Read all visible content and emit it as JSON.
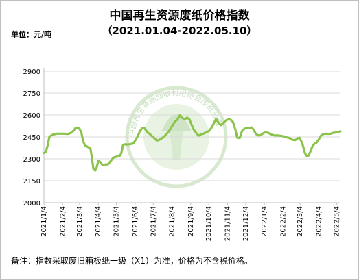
{
  "title": "中国再生资源废纸价格指数",
  "subtitle": "（2021.01.04-2022.05.10）",
  "unit": "单位：元/吨",
  "note": "备注：指数采取废旧箱板纸一级（X1）为准，价格为不含税价格。",
  "watermark": {
    "text": "中国再生资源回收利用协会废纸分会",
    "color": "#d7e9cf"
  },
  "colors": {
    "line": "#8cc34a",
    "axis": "#bfbfbf",
    "grid": "#d9d9d9"
  },
  "chart_data": {
    "type": "line",
    "title": "中国再生资源废纸价格指数",
    "subtitle": "（2021.01.04-2022.05.10）",
    "xlabel": "",
    "ylabel": "单位：元/吨",
    "ylim": [
      2000,
      2900
    ],
    "yticks": [
      2000,
      2150,
      2300,
      2450,
      2600,
      2750,
      2900
    ],
    "xlim": [
      "2021-01-04",
      "2022-05-10"
    ],
    "xticks": [
      "2021/1/4",
      "2021/2/4",
      "2021/3/4",
      "2021/4/4",
      "2021/5/4",
      "2021/6/4",
      "2021/7/4",
      "2021/8/4",
      "2021/9/4",
      "2021/10/4",
      "2021/11/4",
      "2021/12/4",
      "2022/1/4",
      "2022/2/4",
      "2022/3/4",
      "2022/4/4",
      "2022/5/4"
    ],
    "grid": "horizontal",
    "series": [
      {
        "color": "#8cc34a",
        "points": [
          [
            "2021-01-04",
            2340
          ],
          [
            "2021-01-07",
            2345
          ],
          [
            "2021-01-10",
            2390
          ],
          [
            "2021-01-13",
            2450
          ],
          [
            "2021-01-17",
            2462
          ],
          [
            "2021-01-21",
            2468
          ],
          [
            "2021-01-25",
            2472
          ],
          [
            "2021-02-04",
            2472
          ],
          [
            "2021-02-13",
            2470
          ],
          [
            "2021-02-18",
            2478
          ],
          [
            "2021-02-22",
            2492
          ],
          [
            "2021-02-25",
            2510
          ],
          [
            "2021-03-01",
            2514
          ],
          [
            "2021-03-04",
            2505
          ],
          [
            "2021-03-07",
            2480
          ],
          [
            "2021-03-10",
            2420
          ],
          [
            "2021-03-13",
            2392
          ],
          [
            "2021-03-16",
            2385
          ],
          [
            "2021-03-19",
            2378
          ],
          [
            "2021-03-22",
            2372
          ],
          [
            "2021-03-24",
            2320
          ],
          [
            "2021-03-27",
            2230
          ],
          [
            "2021-03-30",
            2220
          ],
          [
            "2021-04-01",
            2236
          ],
          [
            "2021-04-04",
            2285
          ],
          [
            "2021-04-07",
            2280
          ],
          [
            "2021-04-10",
            2262
          ],
          [
            "2021-04-13",
            2258
          ],
          [
            "2021-04-16",
            2262
          ],
          [
            "2021-04-20",
            2262
          ],
          [
            "2021-04-24",
            2282
          ],
          [
            "2021-04-29",
            2308
          ],
          [
            "2021-05-04",
            2315
          ],
          [
            "2021-05-09",
            2318
          ],
          [
            "2021-05-12",
            2338
          ],
          [
            "2021-05-15",
            2395
          ],
          [
            "2021-05-18",
            2400
          ],
          [
            "2021-05-21",
            2398
          ],
          [
            "2021-05-26",
            2400
          ],
          [
            "2021-06-01",
            2405
          ],
          [
            "2021-06-04",
            2425
          ],
          [
            "2021-06-08",
            2452
          ],
          [
            "2021-06-12",
            2490
          ],
          [
            "2021-06-16",
            2512
          ],
          [
            "2021-06-20",
            2508
          ],
          [
            "2021-06-24",
            2482
          ],
          [
            "2021-06-28",
            2470
          ],
          [
            "2021-07-02",
            2455
          ],
          [
            "2021-07-06",
            2440
          ],
          [
            "2021-07-10",
            2425
          ],
          [
            "2021-07-14",
            2430
          ],
          [
            "2021-07-18",
            2440
          ],
          [
            "2021-07-22",
            2452
          ],
          [
            "2021-07-26",
            2470
          ],
          [
            "2021-07-30",
            2488
          ],
          [
            "2021-08-04",
            2522
          ],
          [
            "2021-08-09",
            2555
          ],
          [
            "2021-08-13",
            2568
          ],
          [
            "2021-08-17",
            2598
          ],
          [
            "2021-08-21",
            2580
          ],
          [
            "2021-08-25",
            2570
          ],
          [
            "2021-08-29",
            2582
          ],
          [
            "2021-09-02",
            2570
          ],
          [
            "2021-09-05",
            2538
          ],
          [
            "2021-09-09",
            2500
          ],
          [
            "2021-09-13",
            2478
          ],
          [
            "2021-09-17",
            2458
          ],
          [
            "2021-09-21",
            2468
          ],
          [
            "2021-09-25",
            2472
          ],
          [
            "2021-09-29",
            2480
          ],
          [
            "2021-10-04",
            2490
          ],
          [
            "2021-10-08",
            2510
          ],
          [
            "2021-10-12",
            2540
          ],
          [
            "2021-10-16",
            2575
          ],
          [
            "2021-10-20",
            2545
          ],
          [
            "2021-10-24",
            2530
          ],
          [
            "2021-10-28",
            2545
          ],
          [
            "2021-11-01",
            2562
          ],
          [
            "2021-11-05",
            2570
          ],
          [
            "2021-11-09",
            2568
          ],
          [
            "2021-11-13",
            2552
          ],
          [
            "2021-11-17",
            2500
          ],
          [
            "2021-11-20",
            2445
          ],
          [
            "2021-11-24",
            2442
          ],
          [
            "2021-11-28",
            2490
          ],
          [
            "2021-12-02",
            2506
          ],
          [
            "2021-12-06",
            2510
          ],
          [
            "2021-12-10",
            2512
          ],
          [
            "2021-12-14",
            2515
          ],
          [
            "2021-12-17",
            2500
          ],
          [
            "2021-12-21",
            2470
          ],
          [
            "2021-12-25",
            2460
          ],
          [
            "2021-12-29",
            2462
          ],
          [
            "2022-01-02",
            2475
          ],
          [
            "2022-01-06",
            2482
          ],
          [
            "2022-01-10",
            2478
          ],
          [
            "2022-01-14",
            2470
          ],
          [
            "2022-01-18",
            2462
          ],
          [
            "2022-01-22",
            2460
          ],
          [
            "2022-01-26",
            2460
          ],
          [
            "2022-01-30",
            2458
          ],
          [
            "2022-02-04",
            2455
          ],
          [
            "2022-02-08",
            2450
          ],
          [
            "2022-02-12",
            2445
          ],
          [
            "2022-02-16",
            2440
          ],
          [
            "2022-02-20",
            2430
          ],
          [
            "2022-02-24",
            2428
          ],
          [
            "2022-02-28",
            2440
          ],
          [
            "2022-03-03",
            2445
          ],
          [
            "2022-03-06",
            2422
          ],
          [
            "2022-03-09",
            2388
          ],
          [
            "2022-03-12",
            2340
          ],
          [
            "2022-03-15",
            2320
          ],
          [
            "2022-03-18",
            2322
          ],
          [
            "2022-03-21",
            2348
          ],
          [
            "2022-03-24",
            2380
          ],
          [
            "2022-03-27",
            2400
          ],
          [
            "2022-03-31",
            2410
          ],
          [
            "2022-04-04",
            2432
          ],
          [
            "2022-04-08",
            2460
          ],
          [
            "2022-04-12",
            2470
          ],
          [
            "2022-04-16",
            2472
          ],
          [
            "2022-04-20",
            2470
          ],
          [
            "2022-04-24",
            2472
          ],
          [
            "2022-04-28",
            2478
          ],
          [
            "2022-05-02",
            2480
          ],
          [
            "2022-05-06",
            2483
          ],
          [
            "2022-05-10",
            2488
          ]
        ]
      }
    ]
  }
}
